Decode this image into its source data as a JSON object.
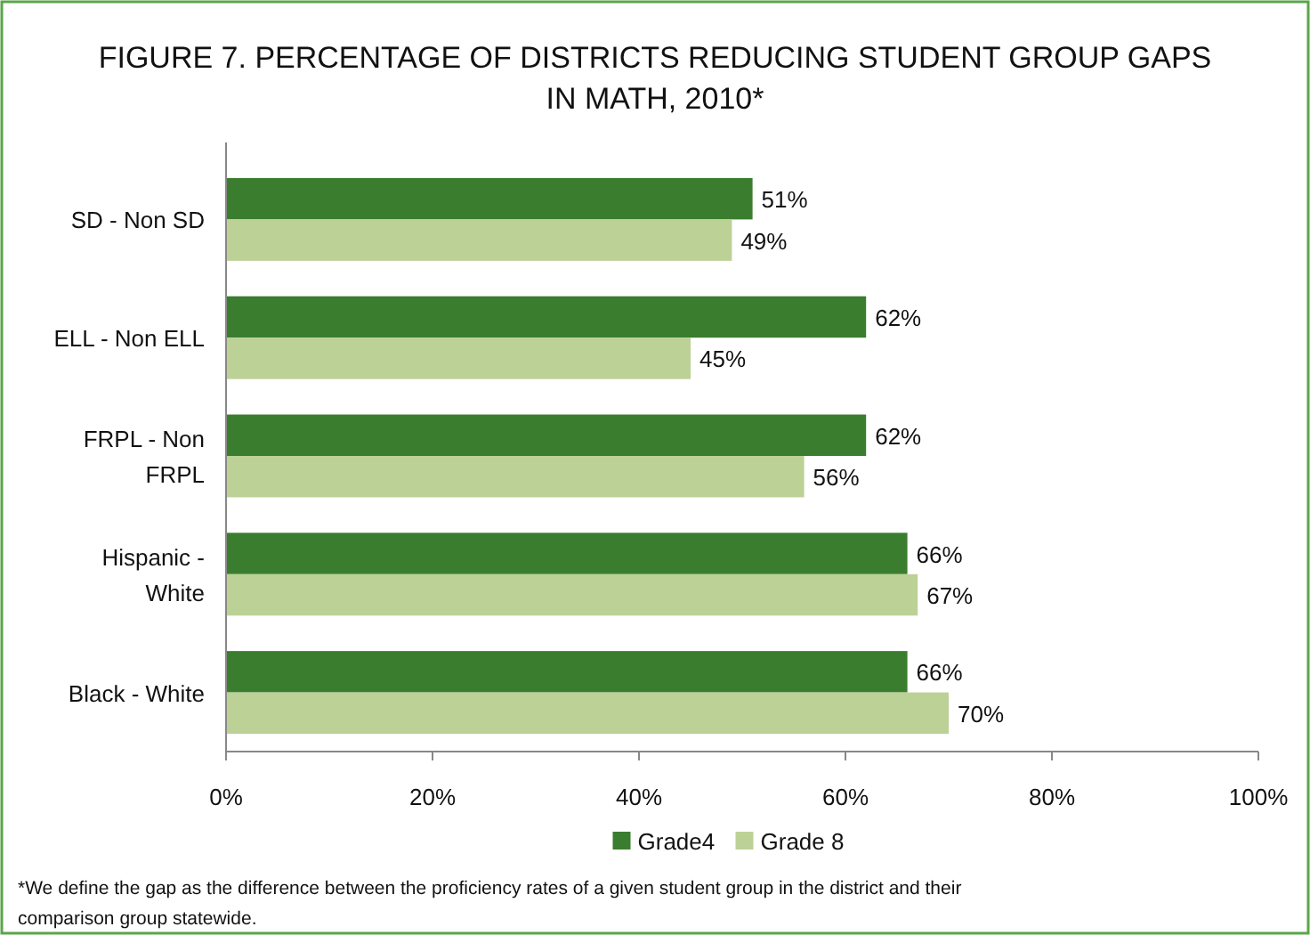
{
  "chart_data": {
    "type": "bar",
    "orientation": "horizontal",
    "title": "FIGURE 7.  PERCENTAGE OF DISTRICTS REDUCING STUDENT GROUP GAPS IN MATH, 2010*",
    "categories": [
      "SD - Non SD",
      "ELL - Non ELL",
      "FRPL - Non FRPL",
      "Hispanic - White",
      "Black - White"
    ],
    "series": [
      {
        "name": "Grade4",
        "color": "#3a7d2e",
        "values": [
          51,
          62,
          62,
          66,
          66
        ],
        "value_labels": [
          "51%",
          "62%",
          "62%",
          "66%",
          "66%"
        ]
      },
      {
        "name": "Grade 8",
        "color": "#bcd196",
        "values": [
          49,
          45,
          56,
          67,
          70
        ],
        "value_labels": [
          "49%",
          "45%",
          "56%",
          "67%",
          "70%"
        ]
      }
    ],
    "xlim": [
      0,
      100
    ],
    "xticks": [
      {
        "value": 0,
        "label": "0%"
      },
      {
        "value": 20,
        "label": "20%"
      },
      {
        "value": 40,
        "label": "40%"
      },
      {
        "value": 60,
        "label": "60%"
      },
      {
        "value": 80,
        "label": "80%"
      },
      {
        "value": 100,
        "label": "100%"
      }
    ],
    "grid": false,
    "legend": "bottom",
    "annotations": [
      "*We define the gap as the difference between the proficiency rates of a given student group in the district and their comparison group statewide."
    ]
  }
}
